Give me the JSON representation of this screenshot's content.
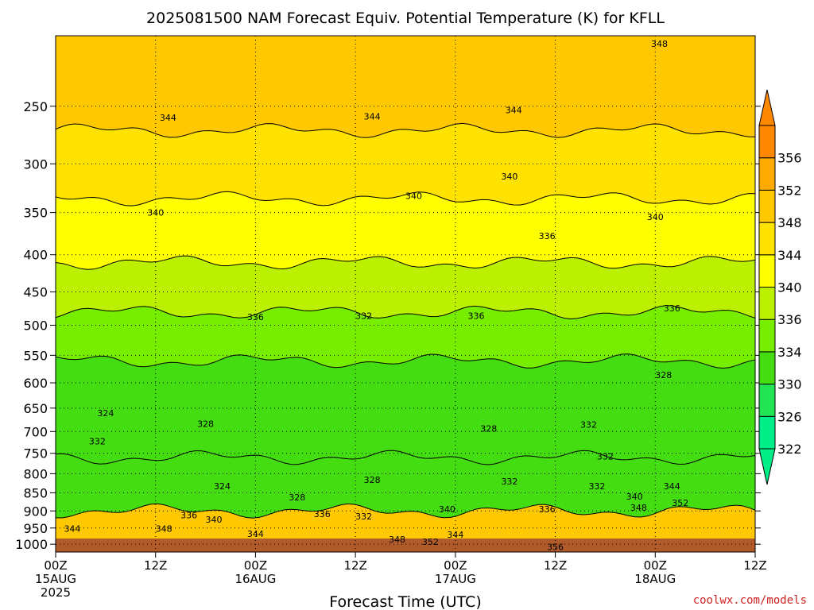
{
  "title": "2025081500 NAM Forecast Equiv. Potential Temperature (K) for KFLL",
  "credit": "coolwx.com/models",
  "colors": {
    "credit": "#cc2222",
    "ground": "#b15a2a",
    "grid": "#000000"
  },
  "chart_data": {
    "type": "contour",
    "title": "2025081500 NAM Forecast Equiv. Potential Temperature (K) for KFLL",
    "xlabel": "Forecast Time (UTC)",
    "ylabel": "",
    "y_scale": "log-pressure",
    "y_axis_inverted": true,
    "xlim_hours": [
      0,
      84
    ],
    "ylim_hPa": [
      1025,
      200
    ],
    "y_ticks": [
      {
        "value": 250,
        "label": "250"
      },
      {
        "value": 300,
        "label": "300"
      },
      {
        "value": 350,
        "label": "350"
      },
      {
        "value": 400,
        "label": "400"
      },
      {
        "value": 450,
        "label": "450"
      },
      {
        "value": 500,
        "label": "500"
      },
      {
        "value": 550,
        "label": "550"
      },
      {
        "value": 600,
        "label": "600"
      },
      {
        "value": 650,
        "label": "650"
      },
      {
        "value": 700,
        "label": "700"
      },
      {
        "value": 750,
        "label": "750"
      },
      {
        "value": 800,
        "label": "800"
      },
      {
        "value": 850,
        "label": "850"
      },
      {
        "value": 900,
        "label": "900"
      },
      {
        "value": 950,
        "label": "950"
      },
      {
        "value": 1000,
        "label": "1000"
      }
    ],
    "x_ticks": [
      {
        "hour": 0,
        "label": "00Z",
        "sub": "15AUG",
        "sub2": "2025"
      },
      {
        "hour": 12,
        "label": "12Z",
        "sub": "",
        "sub2": ""
      },
      {
        "hour": 24,
        "label": "00Z",
        "sub": "16AUG",
        "sub2": ""
      },
      {
        "hour": 36,
        "label": "12Z",
        "sub": "",
        "sub2": ""
      },
      {
        "hour": 48,
        "label": "00Z",
        "sub": "17AUG",
        "sub2": ""
      },
      {
        "hour": 60,
        "label": "12Z",
        "sub": "",
        "sub2": ""
      },
      {
        "hour": 72,
        "label": "00Z",
        "sub": "18AUG",
        "sub2": ""
      },
      {
        "hour": 84,
        "label": "12Z",
        "sub": "",
        "sub2": ""
      }
    ],
    "grid": true,
    "colorbar": {
      "levels": [
        322,
        326,
        330,
        334,
        336,
        340,
        344,
        348,
        352,
        356
      ],
      "colors": [
        "#00ee88",
        "#22e455",
        "#44dd11",
        "#77ee00",
        "#bbf000",
        "#ffff00",
        "#ffe200",
        "#ffc800",
        "#ffaa00",
        "#ff8800"
      ],
      "under_color": "#00ee88",
      "over_color": "#ff8800"
    },
    "bands": [
      {
        "theta_e": 349,
        "p_top": 200,
        "p_bottom": 270
      },
      {
        "theta_e": 345,
        "p_top": 270,
        "p_bottom": 335
      },
      {
        "theta_e": 341,
        "p_top": 335,
        "p_bottom": 410
      },
      {
        "theta_e": 338,
        "p_top": 410,
        "p_bottom": 480
      },
      {
        "theta_e": 334,
        "p_top": 480,
        "p_bottom": 560
      },
      {
        "theta_e": 330,
        "p_top": 560,
        "p_bottom": 760
      },
      {
        "theta_e": 332,
        "p_top": 760,
        "p_bottom": 900
      },
      {
        "theta_e": 348,
        "p_top": 900,
        "p_bottom": 1010
      }
    ],
    "contour_labels": [
      {
        "text": "348",
        "hour": 72.5,
        "p": 205
      },
      {
        "text": "344",
        "hour": 13.5,
        "p": 259
      },
      {
        "text": "344",
        "hour": 38,
        "p": 258
      },
      {
        "text": "344",
        "hour": 55,
        "p": 253
      },
      {
        "text": "340",
        "hour": 54.5,
        "p": 312
      },
      {
        "text": "340",
        "hour": 43,
        "p": 332
      },
      {
        "text": "340",
        "hour": 12,
        "p": 350
      },
      {
        "text": "340",
        "hour": 72,
        "p": 355
      },
      {
        "text": "336",
        "hour": 59,
        "p": 377
      },
      {
        "text": "336",
        "hour": 24,
        "p": 487
      },
      {
        "text": "332",
        "hour": 37,
        "p": 485
      },
      {
        "text": "336",
        "hour": 50.5,
        "p": 485
      },
      {
        "text": "336",
        "hour": 74,
        "p": 474
      },
      {
        "text": "328",
        "hour": 73,
        "p": 585
      },
      {
        "text": "324",
        "hour": 6,
        "p": 660
      },
      {
        "text": "328",
        "hour": 18,
        "p": 683
      },
      {
        "text": "332",
        "hour": 5,
        "p": 722
      },
      {
        "text": "328",
        "hour": 52,
        "p": 693
      },
      {
        "text": "332",
        "hour": 64,
        "p": 685
      },
      {
        "text": "332",
        "hour": 66,
        "p": 757
      },
      {
        "text": "332",
        "hour": 54.5,
        "p": 820
      },
      {
        "text": "328",
        "hour": 38,
        "p": 815
      },
      {
        "text": "324",
        "hour": 20,
        "p": 832
      },
      {
        "text": "328",
        "hour": 29,
        "p": 862
      },
      {
        "text": "332",
        "hour": 65,
        "p": 832
      },
      {
        "text": "340",
        "hour": 69.5,
        "p": 860
      },
      {
        "text": "344",
        "hour": 74,
        "p": 832
      },
      {
        "text": "348",
        "hour": 70,
        "p": 890
      },
      {
        "text": "352",
        "hour": 75,
        "p": 877
      },
      {
        "text": "336",
        "hour": 59,
        "p": 895
      },
      {
        "text": "340",
        "hour": 47,
        "p": 895
      },
      {
        "text": "336",
        "hour": 32,
        "p": 908
      },
      {
        "text": "332",
        "hour": 37,
        "p": 915
      },
      {
        "text": "336",
        "hour": 16,
        "p": 912
      },
      {
        "text": "340",
        "hour": 19,
        "p": 925
      },
      {
        "text": "348",
        "hour": 13,
        "p": 952
      },
      {
        "text": "344",
        "hour": 2,
        "p": 952
      },
      {
        "text": "344",
        "hour": 24,
        "p": 967
      },
      {
        "text": "348",
        "hour": 41,
        "p": 985
      },
      {
        "text": "352",
        "hour": 45,
        "p": 992
      },
      {
        "text": "344",
        "hour": 48,
        "p": 970
      },
      {
        "text": "356",
        "hour": 60,
        "p": 1008
      }
    ]
  }
}
